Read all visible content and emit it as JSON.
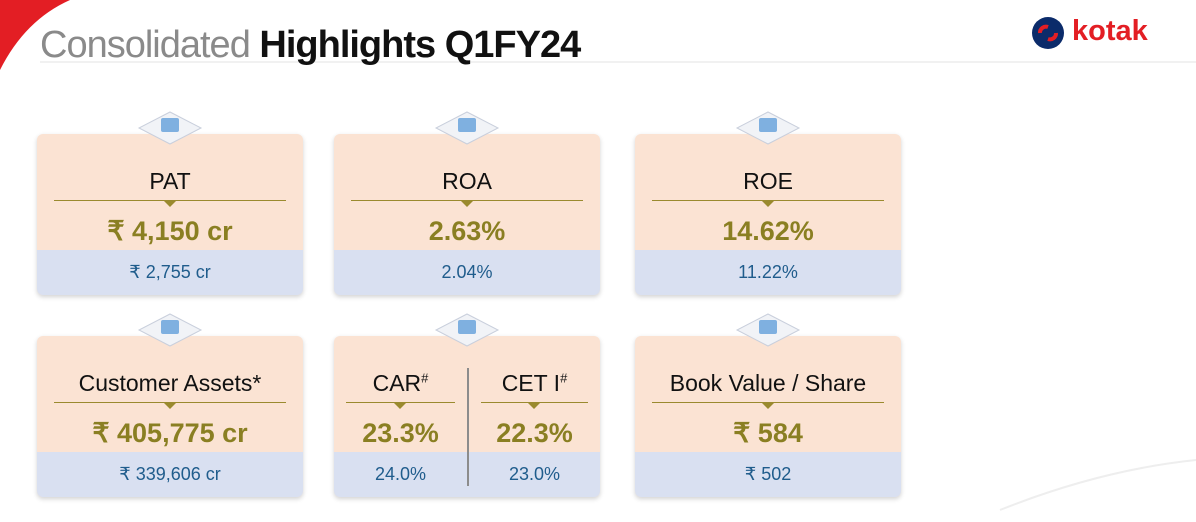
{
  "header": {
    "title_light": "Consolidated",
    "title_bold": "Highlights Q1FY24",
    "logo": "kotak"
  },
  "cards": [
    {
      "label": "PAT",
      "value": "₹ 4,150 cr",
      "previous": "₹ 2,755 cr"
    },
    {
      "label": "ROA",
      "value": "2.63%",
      "previous": "2.04%"
    },
    {
      "label": "ROE",
      "value": "14.62%",
      "previous": "11.22%"
    },
    {
      "label": "Customer Assets*",
      "value": "₹ 405,775 cr",
      "previous": "₹ 339,606 cr"
    },
    {
      "parts": [
        {
          "label": "CAR",
          "sup": "#",
          "value": "23.3%",
          "previous": "24.0%"
        },
        {
          "label": "CET I",
          "sup": "#",
          "value": "22.3%",
          "previous": "23.0%"
        }
      ]
    },
    {
      "label": "Book Value / Share",
      "value": "₹ 584",
      "previous": "₹ 502"
    }
  ]
}
